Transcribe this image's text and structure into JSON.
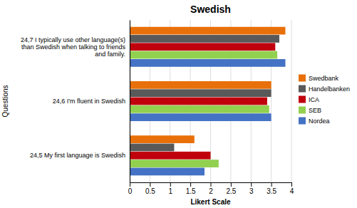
{
  "chart_data": {
    "type": "bar",
    "orientation": "horizontal",
    "title": "Swedish",
    "xlabel": "Likert Scale",
    "ylabel": "Questions",
    "categories": [
      "24,5  My first language is Swedish",
      "24,6  I'm fluent in Swedish",
      "24,7  I typically use other language(s)\nthan Swedish when talking to friends\nand family."
    ],
    "series": [
      {
        "name": "Swedbank",
        "color": "#E8700A",
        "values": [
          1.6,
          3.5,
          3.85
        ]
      },
      {
        "name": "Handelbanken",
        "color": "#595959",
        "values": [
          1.1,
          3.5,
          3.7
        ]
      },
      {
        "name": "ICA",
        "color": "#C0000C",
        "values": [
          2.0,
          3.4,
          3.6
        ]
      },
      {
        "name": "SEB",
        "color": "#92D050",
        "values": [
          2.2,
          3.45,
          3.65
        ]
      },
      {
        "name": "Nordea",
        "color": "#4472C4",
        "values": [
          1.85,
          3.5,
          3.85
        ]
      }
    ],
    "xlim": [
      0,
      4
    ],
    "xticks": [
      0,
      0.5,
      1,
      1.5,
      2,
      2.5,
      3,
      3.5,
      4
    ],
    "grid": true,
    "legend": "right"
  }
}
